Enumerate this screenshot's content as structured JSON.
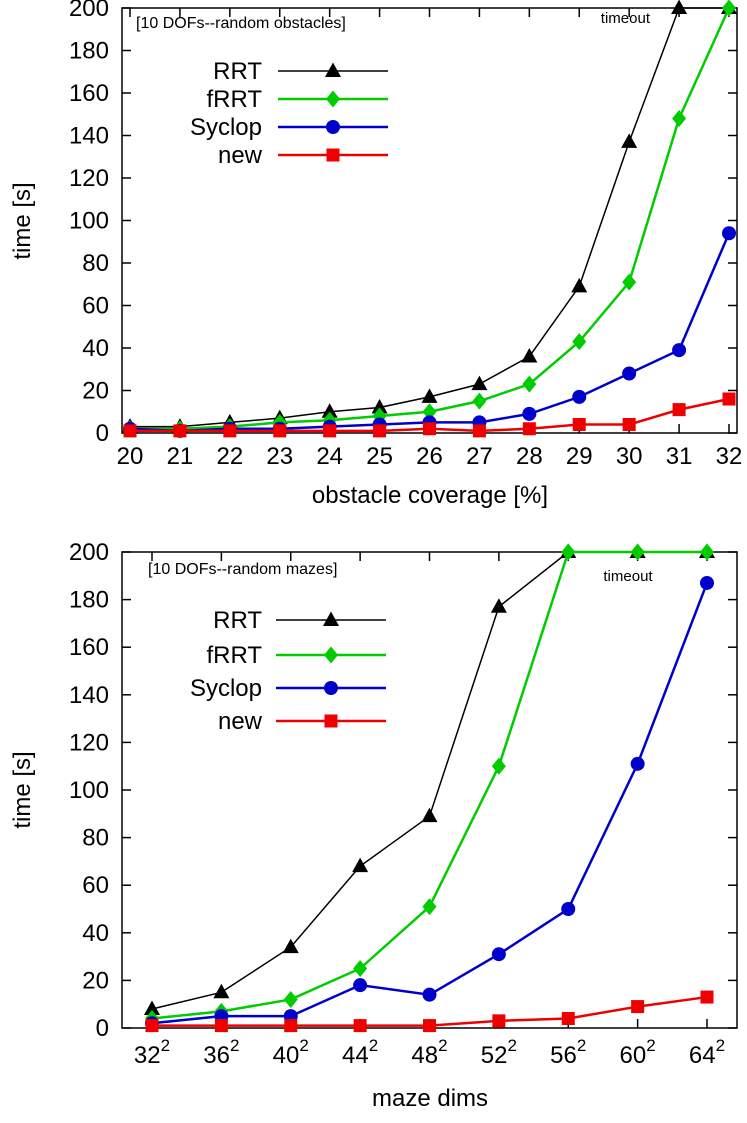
{
  "chart_data": [
    {
      "id": "obstacles",
      "type": "line",
      "title": "[10 DOFs--random obstacles]",
      "xlabel": "obstacle coverage [%]",
      "ylabel": "time [s]",
      "timeout_label": "timeout",
      "ylim": [
        0,
        200
      ],
      "ytick_step": 20,
      "x": [
        20,
        21,
        22,
        23,
        24,
        25,
        26,
        27,
        28,
        29,
        30,
        31,
        32
      ],
      "xtick_labels": [
        "20",
        "21",
        "22",
        "23",
        "24",
        "25",
        "26",
        "27",
        "28",
        "29",
        "30",
        "31",
        "32"
      ],
      "legend_position": "top-left-inside",
      "grid": false,
      "series": [
        {
          "name": "RRT",
          "color": "#000000",
          "marker": "triangle",
          "values": [
            3,
            3,
            5,
            7,
            10,
            12,
            17,
            23,
            36,
            69,
            137,
            200,
            200
          ]
        },
        {
          "name": "fRRT",
          "color": "#00cc00",
          "marker": "diamond",
          "values": [
            2,
            2,
            3,
            5,
            6,
            8,
            10,
            15,
            23,
            43,
            71,
            148,
            200
          ]
        },
        {
          "name": "Syclop",
          "color": "#0000cc",
          "marker": "circle",
          "values": [
            2,
            1,
            2,
            2,
            3,
            4,
            5,
            5,
            9,
            17,
            28,
            39,
            94
          ]
        },
        {
          "name": "new",
          "color": "#ee0000",
          "marker": "square",
          "values": [
            1,
            1,
            1,
            1,
            1,
            1,
            2,
            1,
            2,
            4,
            4,
            11,
            16
          ]
        }
      ]
    },
    {
      "id": "mazes",
      "type": "line",
      "title": "[10 DOFs--random mazes]",
      "xlabel": "maze dims",
      "ylabel": "time [s]",
      "timeout_label": "timeout",
      "ylim": [
        0,
        200
      ],
      "ytick_step": 20,
      "xtick_labels": [
        "32^2",
        "36^2",
        "40^2",
        "44^2",
        "48^2",
        "52^2",
        "56^2",
        "60^2",
        "64^2"
      ],
      "legend_position": "top-left-inside",
      "grid": false,
      "series": [
        {
          "name": "RRT",
          "color": "#000000",
          "marker": "triangle",
          "values": [
            8,
            15,
            34,
            68,
            89,
            177,
            200,
            200,
            200
          ]
        },
        {
          "name": "fRRT",
          "color": "#00cc00",
          "marker": "diamond",
          "values": [
            4,
            7,
            12,
            25,
            51,
            110,
            200,
            200,
            200
          ]
        },
        {
          "name": "Syclop",
          "color": "#0000cc",
          "marker": "circle",
          "values": [
            2,
            5,
            5,
            18,
            14,
            31,
            50,
            111,
            187
          ]
        },
        {
          "name": "new",
          "color": "#ee0000",
          "marker": "square",
          "values": [
            1,
            1,
            1,
            1,
            1,
            3,
            4,
            9,
            13
          ]
        }
      ]
    }
  ]
}
